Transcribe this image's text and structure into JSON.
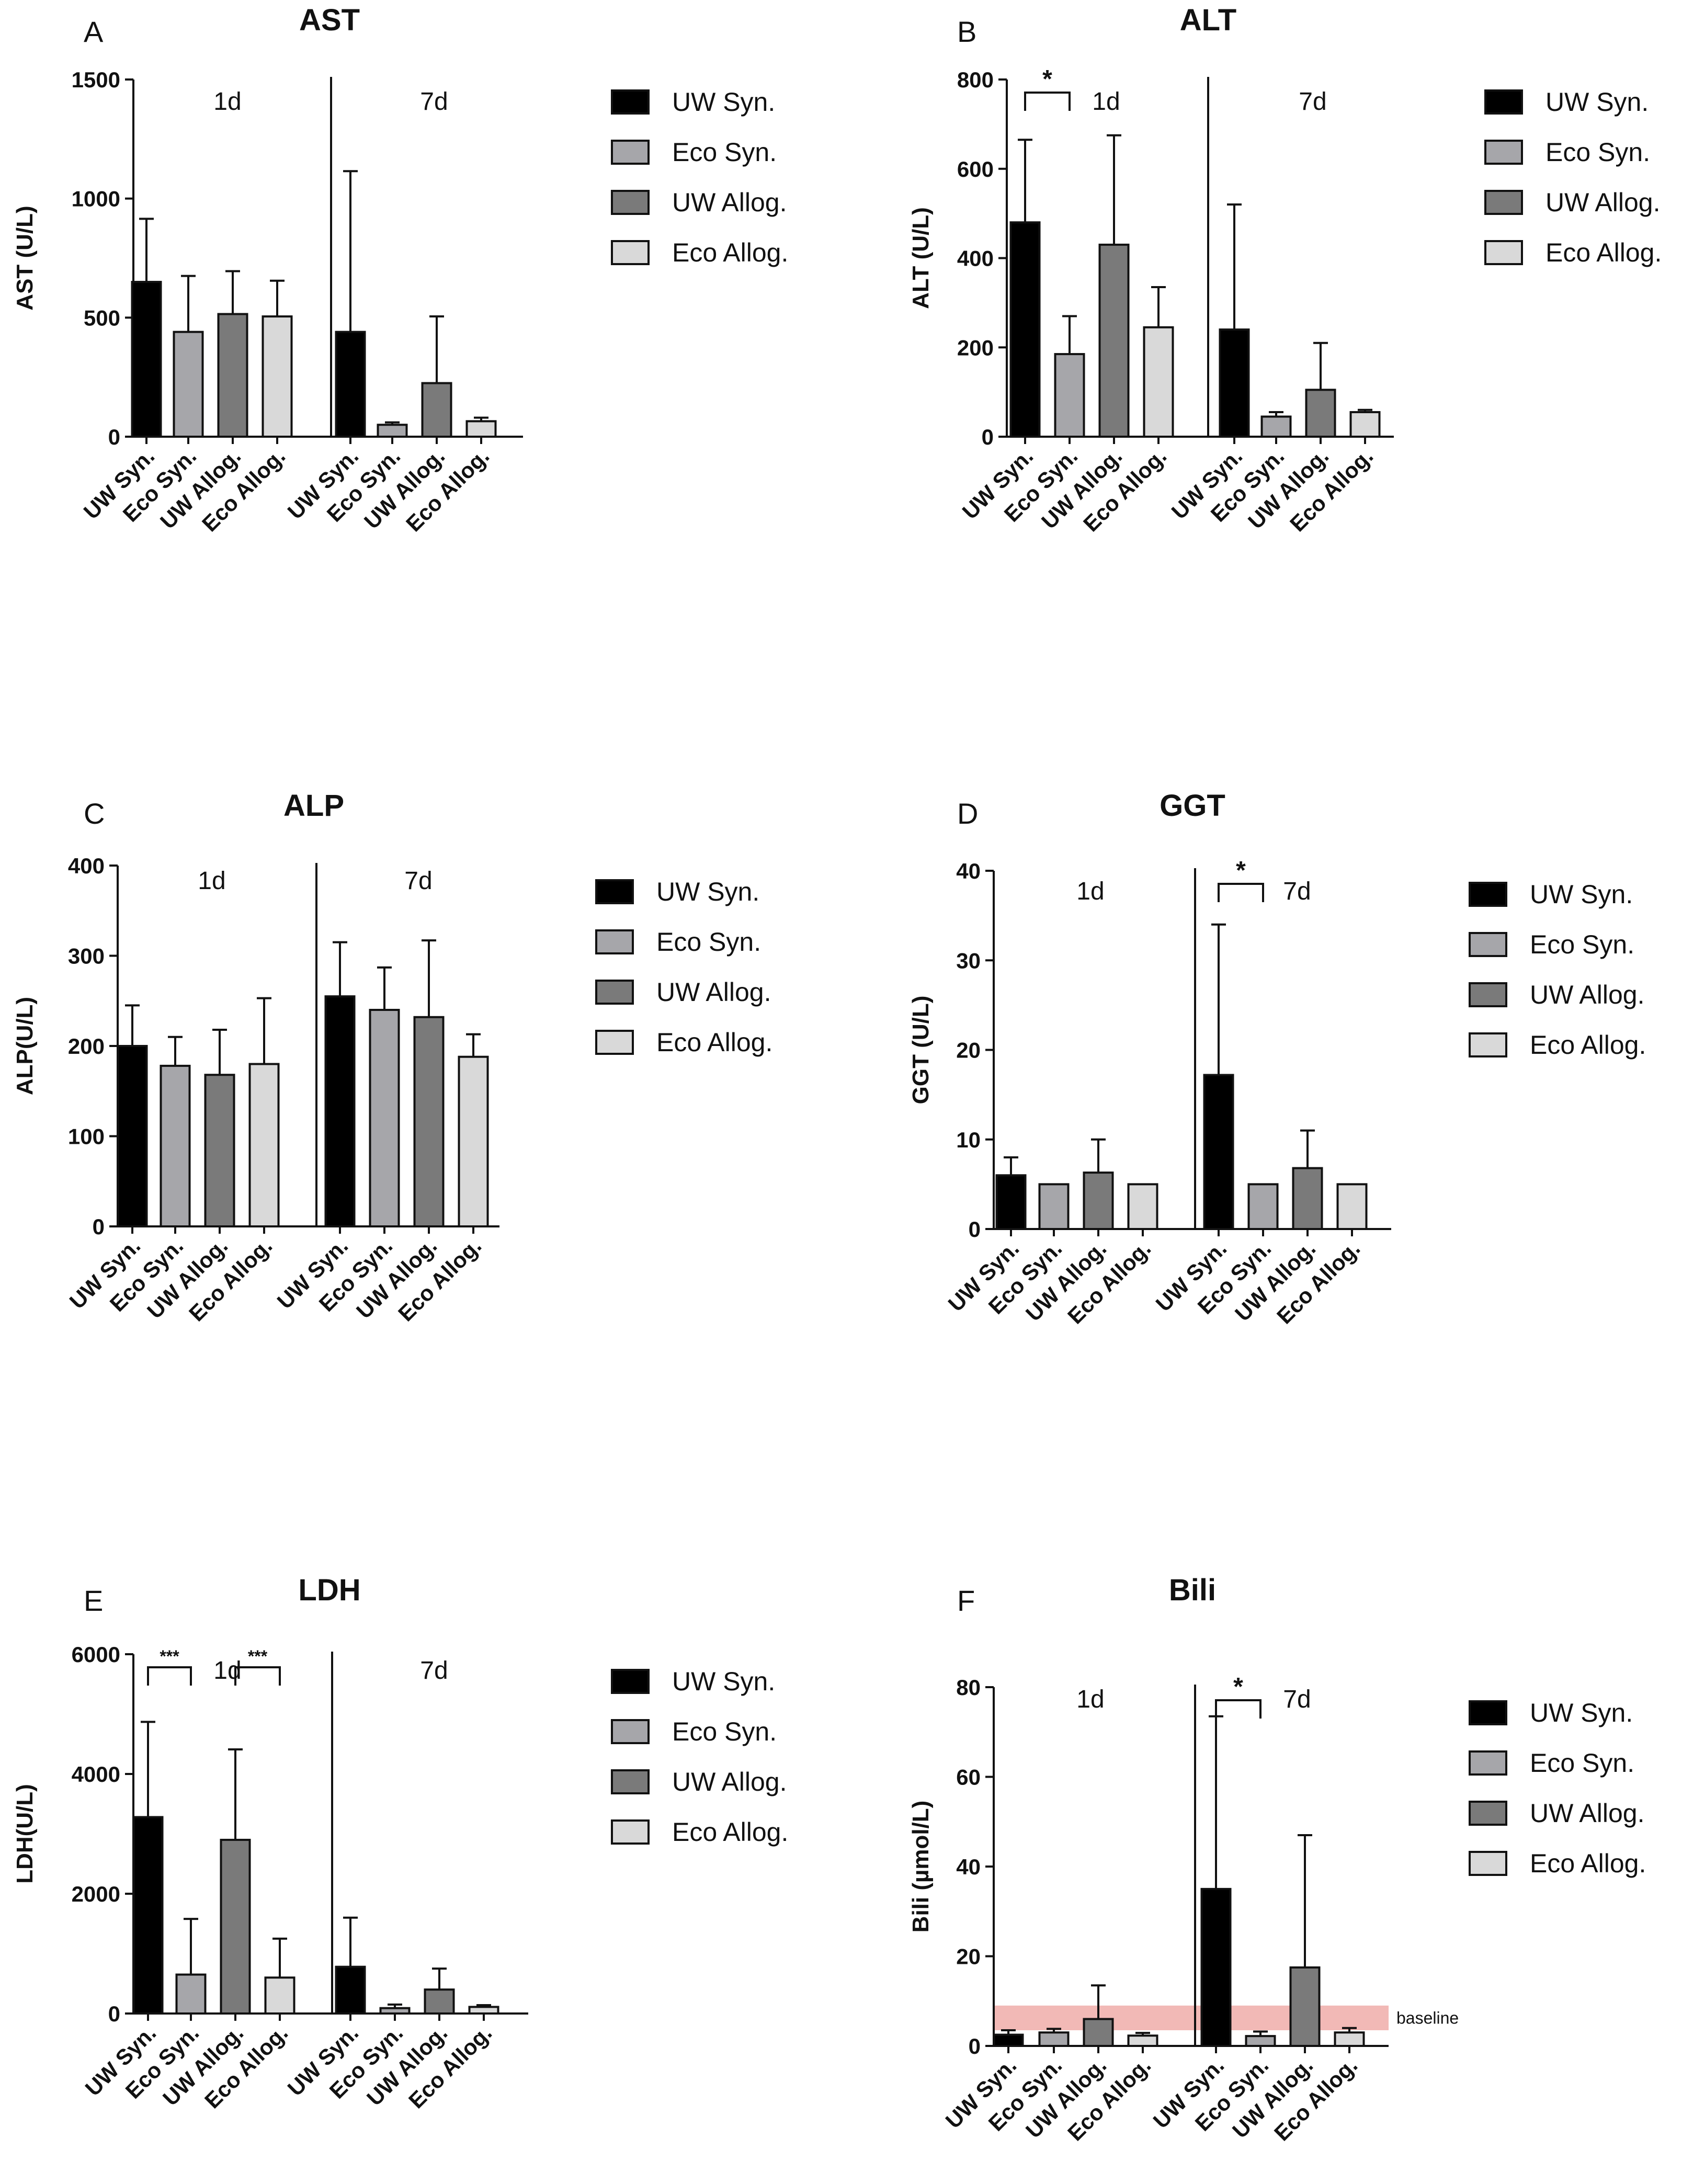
{
  "colors": {
    "uw_syn": "#000000",
    "eco_syn": "#a6a6aa",
    "uw_allog": "#7a7a7a",
    "eco_allog": "#d9d9d9",
    "baseline_band": "#f2b9b6"
  },
  "chart_data": [
    {
      "panel": "A",
      "type": "bar",
      "title": "AST",
      "ylabel": "AST (U/L)",
      "ylim": [
        0,
        1500
      ],
      "yticks": [
        0,
        500,
        1000,
        1500
      ],
      "groups": [
        "1d",
        "7d"
      ],
      "categories": [
        "UW Syn.",
        "Eco Syn.",
        "UW Allog.",
        "Eco Allog."
      ],
      "legend": [
        "UW Syn.",
        "Eco Syn.",
        "UW Allog.",
        "Eco Allog."
      ],
      "series": [
        {
          "group": "1d",
          "values": [
            650,
            440,
            515,
            505
          ],
          "errors": [
            915,
            675,
            695,
            655
          ]
        },
        {
          "group": "7d",
          "values": [
            440,
            50,
            225,
            65
          ],
          "errors": [
            1115,
            60,
            505,
            80
          ]
        }
      ],
      "significance": []
    },
    {
      "panel": "B",
      "type": "bar",
      "title": "ALT",
      "ylabel": "ALT (U/L)",
      "ylim": [
        0,
        800
      ],
      "yticks": [
        0,
        200,
        400,
        600,
        800
      ],
      "groups": [
        "1d",
        "7d"
      ],
      "categories": [
        "UW Syn.",
        "Eco Syn.",
        "UW Allog.",
        "Eco Allog."
      ],
      "legend": [
        "UW Syn.",
        "Eco Syn.",
        "UW Allog.",
        "Eco Allog."
      ],
      "series": [
        {
          "group": "1d",
          "values": [
            480,
            185,
            430,
            245
          ],
          "errors": [
            665,
            270,
            675,
            335
          ]
        },
        {
          "group": "7d",
          "values": [
            240,
            45,
            105,
            55
          ],
          "errors": [
            520,
            55,
            210,
            60
          ]
        }
      ],
      "significance": [
        {
          "group": "1d",
          "from": 0,
          "to": 1,
          "label": "*"
        }
      ]
    },
    {
      "panel": "C",
      "type": "bar",
      "title": "ALP",
      "ylabel": "ALP(U/L)",
      "ylim": [
        0,
        400
      ],
      "yticks": [
        0,
        100,
        200,
        300,
        400
      ],
      "groups": [
        "1d",
        "7d"
      ],
      "categories": [
        "UW Syn.",
        "Eco Syn.",
        "UW Allog.",
        "Eco Allog."
      ],
      "legend": [
        "UW Syn.",
        "Eco Syn.",
        "UW Allog.",
        "Eco Allog."
      ],
      "series": [
        {
          "group": "1d",
          "values": [
            200,
            178,
            168,
            180
          ],
          "errors": [
            245,
            210,
            218,
            253
          ]
        },
        {
          "group": "7d",
          "values": [
            255,
            240,
            232,
            188
          ],
          "errors": [
            315,
            287,
            317,
            213
          ]
        }
      ],
      "significance": []
    },
    {
      "panel": "D",
      "type": "bar",
      "title": "GGT",
      "ylabel": "GGT (U/L)",
      "ylim": [
        0,
        40
      ],
      "yticks": [
        0,
        10,
        20,
        30,
        40
      ],
      "groups": [
        "1d",
        "7d"
      ],
      "categories": [
        "UW Syn.",
        "Eco Syn.",
        "UW Allog.",
        "Eco Allog."
      ],
      "legend": [
        "UW Syn.",
        "Eco Syn.",
        "UW Allog.",
        "Eco Allog."
      ],
      "series": [
        {
          "group": "1d",
          "values": [
            6,
            5,
            6.3,
            5
          ],
          "errors": [
            8,
            5,
            10,
            5
          ]
        },
        {
          "group": "7d",
          "values": [
            17.2,
            5,
            6.8,
            5
          ],
          "errors": [
            34,
            5,
            11,
            5
          ]
        }
      ],
      "significance": [
        {
          "group": "7d",
          "from": 0,
          "to": 1,
          "label": "*"
        }
      ]
    },
    {
      "panel": "E",
      "type": "bar",
      "title": "LDH",
      "ylabel": "LDH(U/L)",
      "ylim": [
        0,
        6000
      ],
      "yticks": [
        0,
        2000,
        4000,
        6000
      ],
      "groups": [
        "1d",
        "7d"
      ],
      "categories": [
        "UW Syn.",
        "Eco Syn.",
        "UW Allog.",
        "Eco Allog."
      ],
      "legend": [
        "UW Syn.",
        "Eco Syn.",
        "UW Allog.",
        "Eco Allog."
      ],
      "series": [
        {
          "group": "1d",
          "values": [
            3280,
            650,
            2900,
            600
          ],
          "errors": [
            4870,
            1580,
            4410,
            1250
          ]
        },
        {
          "group": "7d",
          "values": [
            780,
            90,
            400,
            110
          ],
          "errors": [
            1600,
            150,
            750,
            140
          ]
        }
      ],
      "significance": [
        {
          "group": "1d",
          "from": 0,
          "to": 1,
          "label": "***"
        },
        {
          "group": "1d",
          "from": 2,
          "to": 3,
          "label": "***"
        }
      ]
    },
    {
      "panel": "F",
      "type": "bar",
      "title": "Bili",
      "ylabel": "Bili (µmol/L)",
      "ylim": [
        0,
        80
      ],
      "yticks": [
        0,
        20,
        40,
        60,
        80
      ],
      "groups": [
        "1d",
        "7d"
      ],
      "categories": [
        "UW Syn.",
        "Eco Syn.",
        "UW Allog.",
        "Eco Allog."
      ],
      "legend": [
        "UW Syn.",
        "Eco Syn.",
        "UW Allog.",
        "Eco Allog."
      ],
      "series": [
        {
          "group": "1d",
          "values": [
            2.5,
            3,
            6,
            2.3
          ],
          "errors": [
            3.5,
            3.8,
            13.5,
            2.9
          ]
        },
        {
          "group": "7d",
          "values": [
            35,
            2.2,
            17.5,
            3
          ],
          "errors": [
            73.5,
            3.2,
            47,
            4
          ]
        }
      ],
      "significance": [
        {
          "group": "7d",
          "from": 0,
          "to": 1,
          "label": "*"
        }
      ],
      "band": {
        "range": [
          3.5,
          9
        ],
        "label": "baseline"
      }
    }
  ]
}
